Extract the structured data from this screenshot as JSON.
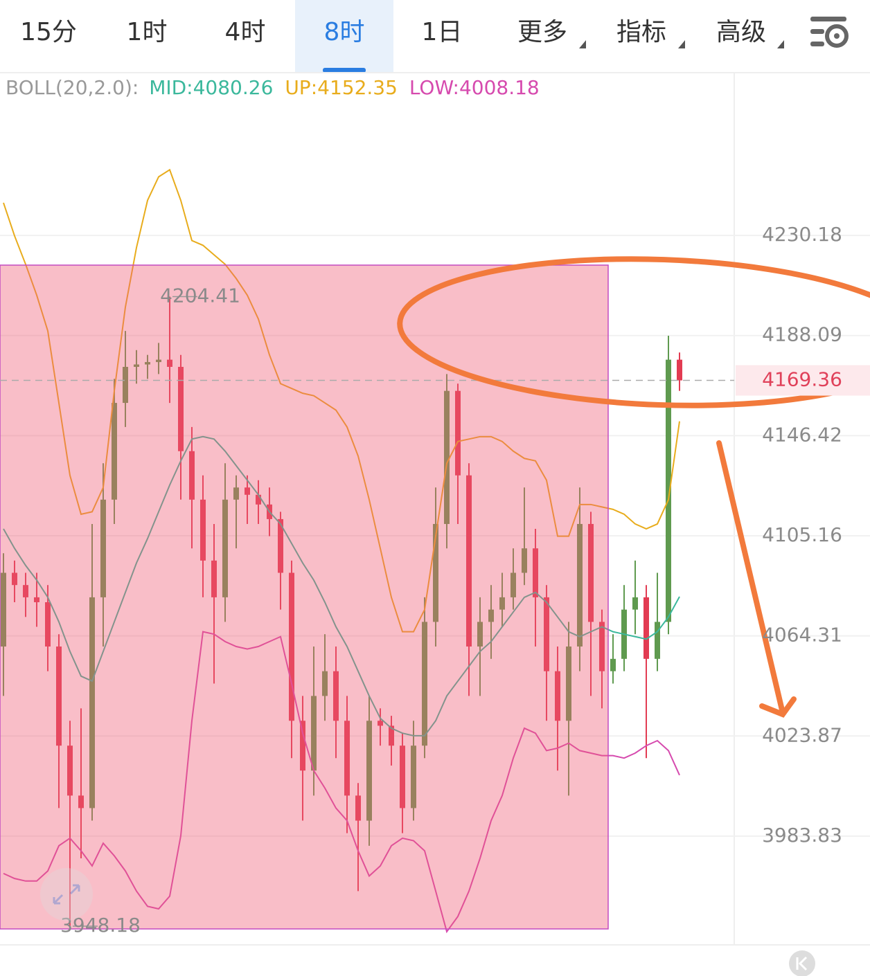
{
  "toolbar": {
    "tabs": [
      "15分",
      "1时",
      "4时",
      "8时",
      "1日",
      "更多",
      "指标",
      "高级"
    ]
  },
  "chart_data": {
    "type": "candlestick",
    "indicator": "BOLL(20,2.0):",
    "legend": [
      "MID:4080.26",
      "UP:4152.35",
      "LOW:4008.18"
    ],
    "log_scale": true,
    "ylim": [
      3940.8,
      4299.5
    ],
    "yticks": [
      4230.18,
      4188.09,
      4146.42,
      4105.16,
      4064.31,
      4023.87,
      3983.83
    ],
    "grid": true,
    "up_color": "#5f9a4f",
    "down_color": "#e23b52",
    "open": [
      4060,
      4090,
      4085,
      4080,
      4078,
      4060,
      4020,
      4000,
      3995,
      4080,
      4120,
      4160,
      4175,
      4176,
      4177,
      4178,
      4175,
      4140,
      4120,
      4095,
      4080,
      4120,
      4125,
      4122,
      4118,
      4112,
      4090,
      4030,
      4010,
      4040,
      4050,
      4030,
      4000,
      3990,
      4030,
      4028,
      4020,
      3995,
      4020,
      4070,
      4110,
      4165,
      4130,
      4060,
      4070,
      4075,
      4080,
      4090,
      4100,
      4080,
      4050,
      4030,
      4060,
      4110,
      4070,
      4050,
      4055,
      4075,
      4080,
      4055,
      4070,
      4178
    ],
    "high": [
      4098,
      4095,
      4090,
      4090,
      4085,
      4065,
      4030,
      4035,
      4110,
      4135,
      4170,
      4190,
      4182,
      4180,
      4185,
      4204.41,
      4180,
      4150,
      4130,
      4110,
      4135,
      4130,
      4130,
      4128,
      4125,
      4115,
      4095,
      4040,
      4060,
      4065,
      4060,
      4040,
      4005,
      4040,
      4035,
      4032,
      4025,
      4030,
      4080,
      4125,
      4172,
      4168,
      4135,
      4080,
      4085,
      4090,
      4100,
      4125,
      4108,
      4085,
      4060,
      4070,
      4125,
      4115,
      4075,
      4065,
      4085,
      4095,
      4085,
      4090,
      4188,
      4181
    ],
    "low": [
      4040,
      4078,
      4072,
      4068,
      4050,
      3995,
      3948.18,
      3975,
      3990,
      4060,
      4110,
      4150,
      4168,
      4170,
      4172,
      4160,
      4120,
      4100,
      4080,
      4045,
      4070,
      4100,
      4110,
      4110,
      4105,
      4075,
      4015,
      3990,
      4000,
      4030,
      4015,
      3985,
      3962,
      3980,
      4020,
      4012,
      3985,
      3990,
      4015,
      4060,
      4100,
      4110,
      4040,
      4040,
      4055,
      4068,
      4075,
      4085,
      4060,
      4030,
      4010,
      4000,
      4050,
      4040,
      4035,
      4045,
      4050,
      4065,
      4015,
      4050,
      4065,
      4165
    ],
    "close": [
      4090,
      4085,
      4080,
      4078,
      4060,
      4020,
      4000,
      3995,
      4080,
      4120,
      4160,
      4175,
      4176,
      4177,
      4178,
      4175,
      4140,
      4120,
      4095,
      4080,
      4120,
      4125,
      4122,
      4118,
      4112,
      4090,
      4030,
      4010,
      4040,
      4050,
      4030,
      4000,
      3990,
      4030,
      4028,
      4020,
      3995,
      4020,
      4070,
      4110,
      4165,
      4130,
      4060,
      4070,
      4075,
      4080,
      4090,
      4100,
      4080,
      4050,
      4030,
      4060,
      4110,
      4070,
      4050,
      4055,
      4075,
      4080,
      4055,
      4070,
      4178,
      4169.36
    ],
    "series": [
      {
        "color": "#3bb89c",
        "values": [
          4108,
          4100,
          4093,
          4087,
          4080,
          4070,
          4058,
          4048,
          4046,
          4058,
          4070,
          4082,
          4094,
          4104,
          4115,
          4126,
          4136,
          4145,
          4146,
          4145,
          4140,
          4134,
          4128,
          4122,
          4115,
          4110,
          4102,
          4094,
          4087,
          4078,
          4068,
          4060,
          4050,
          4040,
          4031,
          4027,
          4025,
          4024,
          4024,
          4030,
          4040,
          4046,
          4052,
          4058,
          4062,
          4068,
          4074,
          4080,
          4082,
          4078,
          4072,
          4066,
          4064,
          4066,
          4068,
          4066,
          4065,
          4064,
          4063,
          4066,
          4072,
          4080.26
        ]
      },
      {
        "color": "#e8ac1c",
        "values": [
          4244,
          4230,
          4218,
          4205,
          4190,
          4160,
          4130,
          4114,
          4115,
          4125,
          4165,
          4200,
          4225,
          4245,
          4255,
          4258,
          4245,
          4228,
          4226,
          4222,
          4218,
          4212,
          4205,
          4195,
          4180,
          4168,
          4166,
          4164,
          4163,
          4160,
          4157,
          4150,
          4138,
          4120,
          4100,
          4080,
          4066,
          4066,
          4075,
          4105,
          4135,
          4144,
          4145,
          4146,
          4146,
          4144,
          4140,
          4137,
          4136,
          4128,
          4105,
          4105,
          4118,
          4118,
          4117,
          4116,
          4114,
          4110,
          4108,
          4110,
          4120,
          4152.35
        ]
      },
      {
        "color": "#d64aae",
        "values": [
          3969,
          3967,
          3966,
          3966,
          3970,
          3980,
          3983,
          3978,
          3972,
          3981,
          3976,
          3970,
          3962,
          3956,
          3955,
          3960,
          3984,
          4030,
          4066,
          4065,
          4062,
          4060,
          4059,
          4060,
          4062,
          4064,
          4045,
          4025,
          4010,
          4003,
          3995,
          3990,
          3978,
          3968,
          3972,
          3980,
          3983,
          3982,
          3978,
          3962,
          3946,
          3952,
          3962,
          3975,
          3990,
          4000,
          4015,
          4027,
          4025,
          4018,
          4019,
          4021,
          4018,
          4017,
          4016,
          4016,
          4015,
          4017,
          4020,
          4022,
          4018,
          4008.18
        ]
      }
    ]
  }
}
